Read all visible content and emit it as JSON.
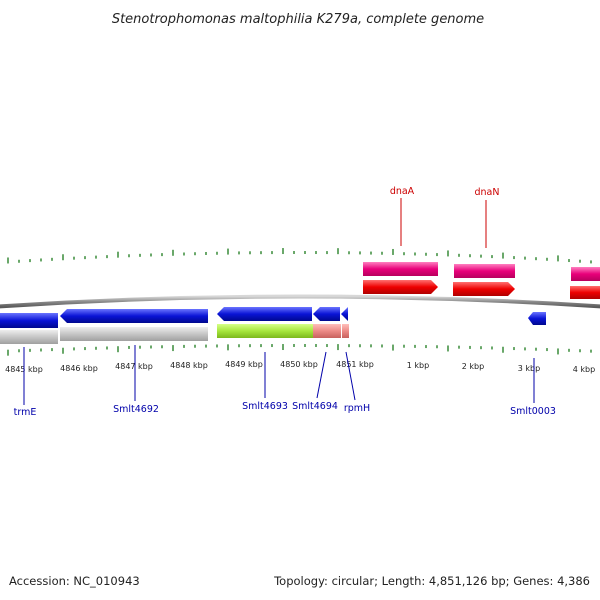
{
  "title": "Stenotrophomonas maltophilia K279a, complete genome",
  "footer": {
    "accession": "Accession: NC_010943",
    "summary": "Topology: circular; Length: 4,851,126 bp; Genes: 4,386"
  },
  "scale_labels": [
    "4845 kbp",
    "4846 kbp",
    "4847 kbp",
    "4848 kbp",
    "4849 kbp",
    "4850 kbp",
    "4851 kbp",
    "1 kbp",
    "2 kbp",
    "3 kbp",
    "4 kbp"
  ],
  "genes_top": [
    {
      "label": "dnaA",
      "color": "#cc0000"
    },
    {
      "label": "dnaN",
      "color": "#cc0000"
    }
  ],
  "genes_bottom": [
    {
      "label": "trmE",
      "color": "#0000aa"
    },
    {
      "label": "Smlt4692",
      "color": "#0000aa"
    },
    {
      "label": "Smlt4693",
      "color": "#0000aa"
    },
    {
      "label": "Smlt4694",
      "color": "#0000aa"
    },
    {
      "label": "rpmH",
      "color": "#0000aa"
    },
    {
      "label": "Smlt0003",
      "color": "#0000aa"
    }
  ],
  "colors": {
    "forward_cds": "#e8007a",
    "forward_gene": "#ee0000",
    "reverse_gene": "#0a14d6",
    "reverse_cds_gray": "#c6c6c6",
    "reverse_cds_green": "#a6e63c",
    "reverse_cds_salmon": "#ec8a86",
    "ticks": "#1a7a1a",
    "backbone": "#8a8a8a"
  }
}
